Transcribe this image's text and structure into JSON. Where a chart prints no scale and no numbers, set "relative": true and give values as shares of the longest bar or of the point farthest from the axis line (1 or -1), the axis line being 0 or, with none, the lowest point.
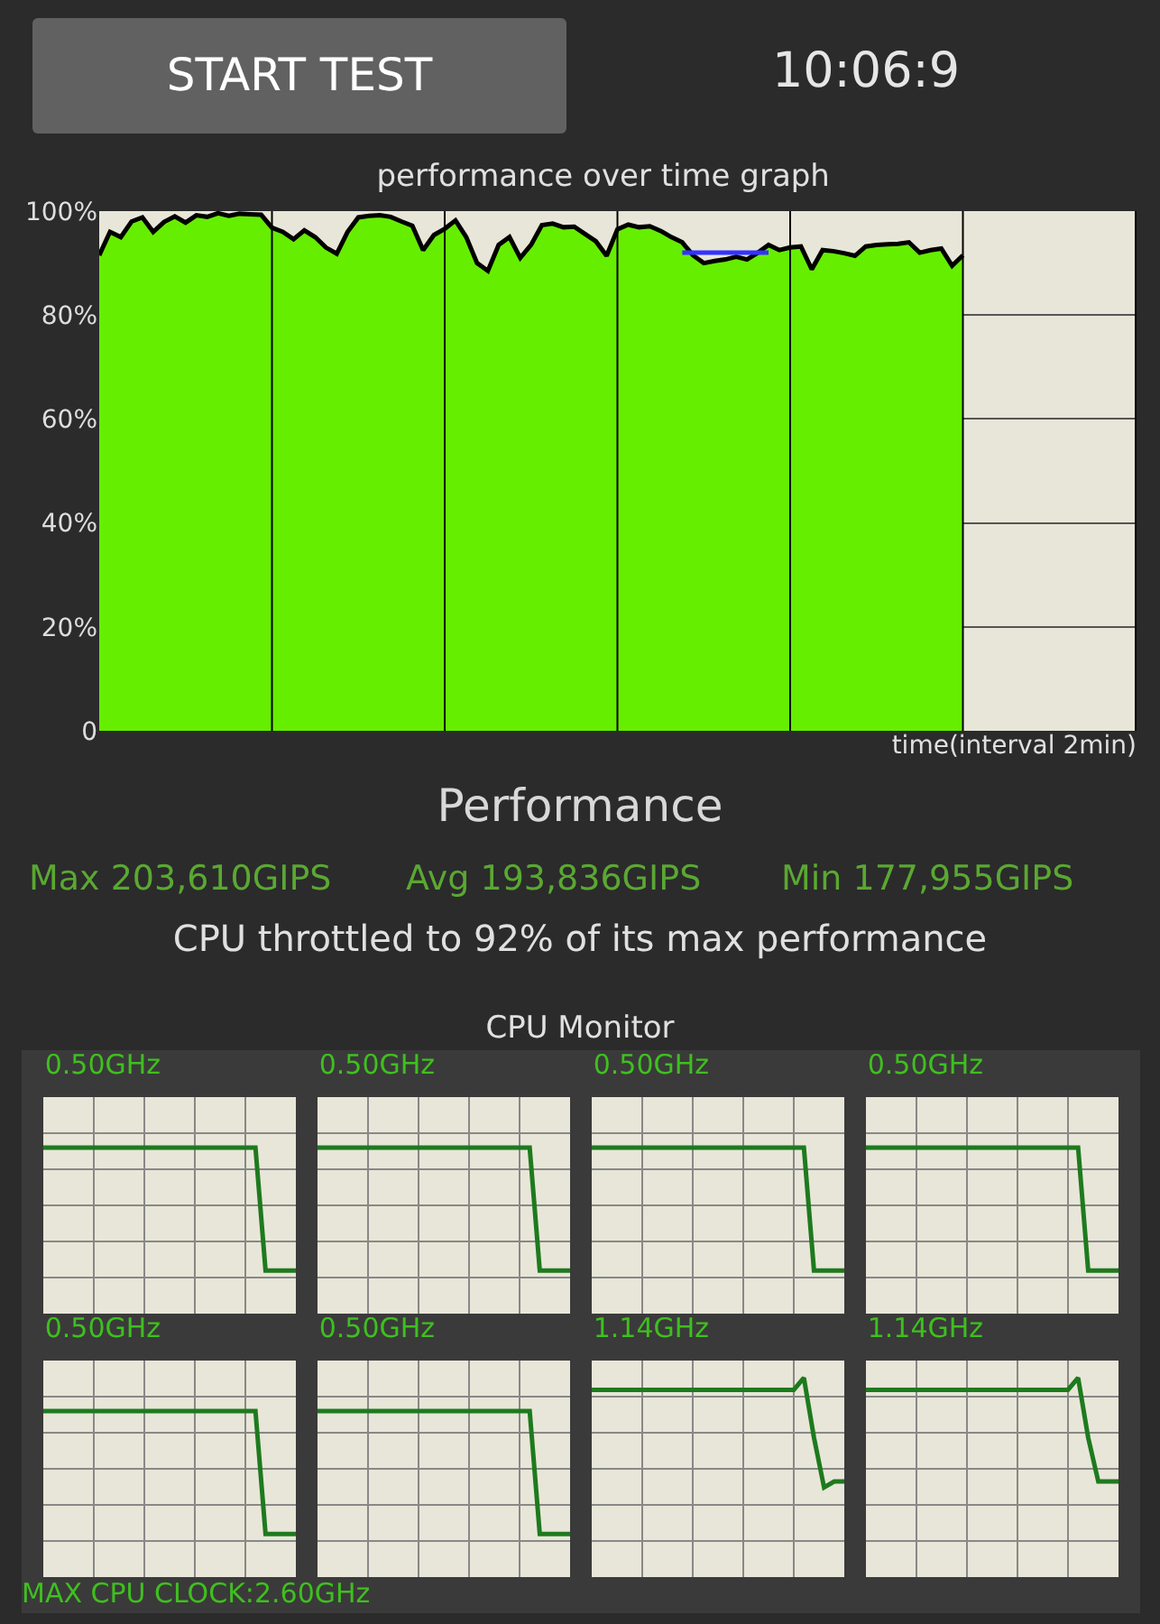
{
  "chart_data": [
    {
      "type": "other",
      "annotations": [
        "START TEST",
        "10:06:9"
      ]
    },
    {
      "type": "area",
      "title": "performance over time graph",
      "xlabel": "time(interval 2min)",
      "ylim": [
        0,
        100
      ],
      "yticks": [
        {
          "value": 0,
          "label": "0"
        },
        {
          "value": 20,
          "label": "20%"
        },
        {
          "value": 40,
          "label": "40%"
        },
        {
          "value": 60,
          "label": "60%"
        },
        {
          "value": 80,
          "label": "80%"
        },
        {
          "value": 100,
          "label": "100%"
        }
      ],
      "grid": true,
      "tick_labels": "y",
      "categories": [
        null,
        null,
        null,
        null,
        null,
        null,
        null,
        null,
        null,
        null,
        null,
        null,
        null,
        null,
        null,
        null,
        null,
        null,
        null,
        null,
        null,
        null,
        null,
        null,
        null,
        null,
        null,
        null,
        null,
        null,
        null,
        null,
        null,
        null,
        null,
        null,
        null,
        null,
        null,
        null,
        null,
        null,
        null,
        null,
        null,
        null,
        null,
        null,
        null,
        null,
        null,
        null,
        null,
        null,
        null,
        null,
        null,
        null,
        null,
        null,
        null,
        null,
        null,
        null,
        null,
        null,
        null,
        null,
        null,
        null,
        null,
        null,
        null,
        null,
        null,
        null,
        null,
        null,
        null,
        null,
        null,
        null,
        null,
        null,
        null,
        null,
        null,
        null,
        null,
        null,
        null,
        null,
        null,
        null,
        null,
        null,
        null
      ],
      "series": [
        {
          "type": "area",
          "color": "#66ee00",
          "values": [
            91.5,
            96,
            95,
            98,
            98.8,
            96,
            97.9,
            99,
            97.8,
            99.2,
            98.9,
            99.6,
            99.1,
            99.5,
            99.4,
            99.3,
            96.8,
            96,
            94.6,
            96.3,
            95,
            93,
            91.8,
            96,
            98.8,
            99.1,
            99.2,
            98.9,
            98,
            97.2,
            92.5,
            95.4,
            96.6,
            98.2,
            95,
            90,
            88.5,
            93.5,
            95,
            91,
            93.5,
            97.3,
            97.6,
            96.9,
            97,
            95.6,
            94.2,
            91.4,
            96.5,
            97.4,
            96.9,
            97.1,
            96.2,
            95,
            94,
            91.5,
            90,
            90.4,
            90.7,
            91.2,
            90.7,
            92,
            93.5,
            92.5,
            93,
            93.2,
            88.8,
            92.5,
            92.3,
            91.9,
            91.4,
            93.2,
            93.5,
            93.6,
            93.7,
            94,
            92,
            92.5,
            92.8,
            89.5,
            91.5,
            null,
            null,
            null,
            null,
            null,
            null,
            null,
            null,
            null,
            null,
            null,
            null,
            null,
            null,
            null,
            null
          ]
        },
        {
          "type": "line",
          "color": "#3333ff",
          "values": [
            null,
            null,
            null,
            null,
            null,
            null,
            null,
            null,
            null,
            null,
            null,
            null,
            null,
            null,
            null,
            null,
            null,
            null,
            null,
            null,
            null,
            null,
            null,
            null,
            null,
            null,
            null,
            null,
            null,
            null,
            null,
            null,
            null,
            null,
            null,
            null,
            null,
            null,
            null,
            null,
            null,
            null,
            null,
            null,
            null,
            null,
            null,
            null,
            null,
            null,
            null,
            null,
            null,
            null,
            92,
            92,
            92,
            92,
            92,
            92,
            92,
            92,
            92,
            null,
            null,
            null,
            null,
            null,
            null,
            null,
            null,
            null,
            null,
            null,
            null,
            null,
            null,
            null,
            null,
            null,
            null,
            null,
            null,
            null,
            null,
            null,
            null,
            null,
            null,
            null,
            null,
            null,
            null,
            null,
            null,
            null,
            null
          ]
        }
      ]
    },
    {
      "type": "other",
      "annotations": [
        "Performance",
        "Max 203,610GIPS",
        "Avg 193,836GIPS",
        "Min 177,955GIPS",
        "CPU throttled to 92% of its max performance",
        "CPU Monitor"
      ]
    },
    {
      "type": "line",
      "title": "0.50GHz",
      "relative": true,
      "grid": true,
      "color": "#1e7a1e",
      "categories": [
        null,
        null,
        null,
        null,
        null,
        null,
        null,
        null,
        null,
        null,
        null,
        null,
        null,
        null,
        null,
        null,
        null,
        null,
        null,
        null,
        null,
        null,
        null,
        null,
        null,
        null
      ],
      "values": [
        1,
        1,
        1,
        1,
        1,
        1,
        1,
        1,
        1,
        1,
        1,
        1,
        1,
        1,
        1,
        1,
        1,
        1,
        1,
        1,
        1,
        1,
        0.26,
        0.26,
        0.26,
        0.26
      ]
    },
    {
      "type": "line",
      "title": "0.50GHz",
      "relative": true,
      "grid": true,
      "color": "#1e7a1e",
      "categories": [
        null,
        null,
        null,
        null,
        null,
        null,
        null,
        null,
        null,
        null,
        null,
        null,
        null,
        null,
        null,
        null,
        null,
        null,
        null,
        null,
        null,
        null,
        null,
        null,
        null,
        null
      ],
      "values": [
        1,
        1,
        1,
        1,
        1,
        1,
        1,
        1,
        1,
        1,
        1,
        1,
        1,
        1,
        1,
        1,
        1,
        1,
        1,
        1,
        1,
        1,
        0.26,
        0.26,
        0.26,
        0.26
      ]
    },
    {
      "type": "line",
      "title": "0.50GHz",
      "relative": true,
      "grid": true,
      "color": "#1e7a1e",
      "categories": [
        null,
        null,
        null,
        null,
        null,
        null,
        null,
        null,
        null,
        null,
        null,
        null,
        null,
        null,
        null,
        null,
        null,
        null,
        null,
        null,
        null,
        null,
        null,
        null,
        null,
        null
      ],
      "values": [
        1,
        1,
        1,
        1,
        1,
        1,
        1,
        1,
        1,
        1,
        1,
        1,
        1,
        1,
        1,
        1,
        1,
        1,
        1,
        1,
        1,
        1,
        0.26,
        0.26,
        0.26,
        0.26
      ]
    },
    {
      "type": "line",
      "title": "0.50GHz",
      "relative": true,
      "grid": true,
      "color": "#1e7a1e",
      "categories": [
        null,
        null,
        null,
        null,
        null,
        null,
        null,
        null,
        null,
        null,
        null,
        null,
        null,
        null,
        null,
        null,
        null,
        null,
        null,
        null,
        null,
        null,
        null,
        null,
        null,
        null
      ],
      "values": [
        1,
        1,
        1,
        1,
        1,
        1,
        1,
        1,
        1,
        1,
        1,
        1,
        1,
        1,
        1,
        1,
        1,
        1,
        1,
        1,
        1,
        1,
        0.26,
        0.26,
        0.26,
        0.26
      ]
    },
    {
      "type": "line",
      "title": "0.50GHz",
      "relative": true,
      "grid": true,
      "color": "#1e7a1e",
      "categories": [
        null,
        null,
        null,
        null,
        null,
        null,
        null,
        null,
        null,
        null,
        null,
        null,
        null,
        null,
        null,
        null,
        null,
        null,
        null,
        null,
        null,
        null,
        null,
        null,
        null,
        null
      ],
      "values": [
        1,
        1,
        1,
        1,
        1,
        1,
        1,
        1,
        1,
        1,
        1,
        1,
        1,
        1,
        1,
        1,
        1,
        1,
        1,
        1,
        1,
        1,
        0.26,
        0.26,
        0.26,
        0.26
      ]
    },
    {
      "type": "line",
      "title": "0.50GHz",
      "relative": true,
      "grid": true,
      "color": "#1e7a1e",
      "categories": [
        null,
        null,
        null,
        null,
        null,
        null,
        null,
        null,
        null,
        null,
        null,
        null,
        null,
        null,
        null,
        null,
        null,
        null,
        null,
        null,
        null,
        null,
        null,
        null,
        null,
        null
      ],
      "values": [
        1,
        1,
        1,
        1,
        1,
        1,
        1,
        1,
        1,
        1,
        1,
        1,
        1,
        1,
        1,
        1,
        1,
        1,
        1,
        1,
        1,
        1,
        0.26,
        0.26,
        0.26,
        0.26
      ]
    },
    {
      "type": "line",
      "title": "1.14GHz",
      "relative": true,
      "grid": true,
      "color": "#1e7a1e",
      "categories": [
        null,
        null,
        null,
        null,
        null,
        null,
        null,
        null,
        null,
        null,
        null,
        null,
        null,
        null,
        null,
        null,
        null,
        null,
        null,
        null,
        null,
        null,
        null,
        null,
        null,
        null
      ],
      "values": [
        0.94,
        0.94,
        0.94,
        0.94,
        0.94,
        0.94,
        0.94,
        0.94,
        0.94,
        0.94,
        0.94,
        0.94,
        0.94,
        0.94,
        0.94,
        0.94,
        0.94,
        0.94,
        0.94,
        0.94,
        0.94,
        1,
        0.7,
        0.45,
        0.48,
        0.48
      ]
    },
    {
      "type": "line",
      "title": "1.14GHz",
      "relative": true,
      "grid": true,
      "color": "#1e7a1e",
      "categories": [
        null,
        null,
        null,
        null,
        null,
        null,
        null,
        null,
        null,
        null,
        null,
        null,
        null,
        null,
        null,
        null,
        null,
        null,
        null,
        null,
        null,
        null,
        null,
        null,
        null,
        null
      ],
      "values": [
        0.94,
        0.94,
        0.94,
        0.94,
        0.94,
        0.94,
        0.94,
        0.94,
        0.94,
        0.94,
        0.94,
        0.94,
        0.94,
        0.94,
        0.94,
        0.94,
        0.94,
        0.94,
        0.94,
        0.94,
        0.94,
        1,
        0.7,
        0.48,
        0.48,
        0.48
      ]
    },
    {
      "type": "other",
      "annotations": [
        "MAX CPU CLOCK:2.60GHz"
      ]
    }
  ]
}
